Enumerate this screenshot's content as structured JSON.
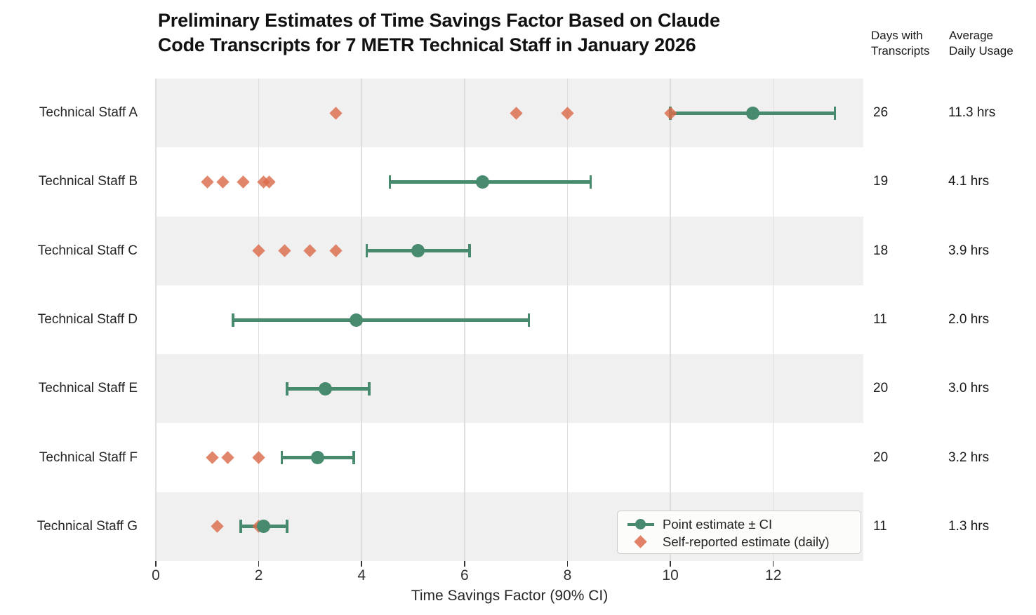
{
  "title": {
    "line1": "Preliminary Estimates of Time Savings Factor Based on Claude",
    "line2": "Code Transcripts for 7 METR Technical Staff in January 2026"
  },
  "columns": {
    "days_line1": "Days with",
    "days_line2": "Transcripts",
    "usage_line1": "Average",
    "usage_line2": "Daily Usage"
  },
  "chart_data": {
    "type": "scatter",
    "subtype": "dot-plot-with-error-bars",
    "title": "Preliminary Estimates of Time Savings Factor Based on Claude Code Transcripts for 7 METR Technical Staff in January 2026",
    "xlabel": "Time Savings Factor (90% CI)",
    "xlim": [
      0,
      13.75
    ],
    "xticks": [
      0,
      2,
      4,
      6,
      8,
      10,
      12
    ],
    "grid": "vertical",
    "legend_position": "lower-right",
    "legend": [
      {
        "label": "Point estimate ± CI",
        "marker": "circle-with-line",
        "color": "#478a6e"
      },
      {
        "label": "Self-reported estimate (daily)",
        "marker": "diamond",
        "color": "#dc6b4b"
      }
    ],
    "rows": [
      {
        "label": "Technical Staff A",
        "point": 11.6,
        "ci": [
          10.0,
          13.2
        ],
        "self_reported": [
          3.5,
          7.0,
          8.0,
          10.0
        ],
        "days": "26",
        "usage": "11.3 hrs"
      },
      {
        "label": "Technical Staff B",
        "point": 6.35,
        "ci": [
          4.55,
          8.45
        ],
        "self_reported": [
          1.0,
          1.3,
          1.7,
          2.1,
          2.2
        ],
        "days": "19",
        "usage": "4.1 hrs"
      },
      {
        "label": "Technical Staff C",
        "point": 5.1,
        "ci": [
          4.1,
          6.1
        ],
        "self_reported": [
          2.0,
          2.5,
          3.0,
          3.5
        ],
        "days": "18",
        "usage": "3.9 hrs"
      },
      {
        "label": "Technical Staff D",
        "point": 3.9,
        "ci": [
          1.5,
          7.25
        ],
        "self_reported": [],
        "days": "11",
        "usage": "2.0 hrs"
      },
      {
        "label": "Technical Staff E",
        "point": 3.3,
        "ci": [
          2.55,
          4.15
        ],
        "self_reported": [],
        "days": "20",
        "usage": "3.0 hrs"
      },
      {
        "label": "Technical Staff F",
        "point": 3.15,
        "ci": [
          2.45,
          3.85
        ],
        "self_reported": [
          1.1,
          1.4,
          2.0
        ],
        "days": "20",
        "usage": "3.2 hrs"
      },
      {
        "label": "Technical Staff G",
        "point": 2.1,
        "ci": [
          1.65,
          2.55
        ],
        "self_reported": [
          1.2,
          2.0
        ],
        "days": "11",
        "usage": "1.3 hrs"
      }
    ],
    "colors": {
      "point_estimate": "#478a6e",
      "self_reported": "#dc6b4b",
      "band": "#f0f0f0",
      "gridline": "#dedede",
      "text": "#262626",
      "title_text": "#111111"
    }
  }
}
